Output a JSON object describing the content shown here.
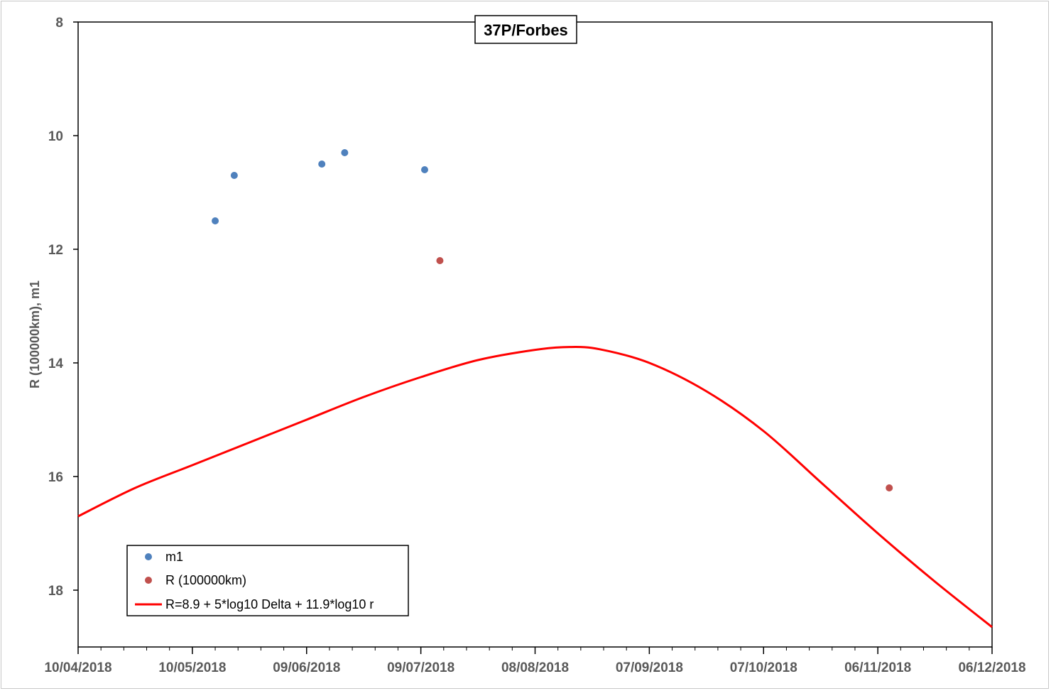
{
  "chart_data": {
    "type": "scatter",
    "title": "37P/Forbes",
    "xlabel": "",
    "ylabel": "R (100000km), m1",
    "x_type": "date",
    "xlim": [
      "2018-04-10",
      "2018-12-06"
    ],
    "ylim": [
      19,
      8
    ],
    "y_reversed": true,
    "x_ticks": [
      "2018-04-10",
      "2018-05-10",
      "2018-06-09",
      "2018-07-09",
      "2018-08-08",
      "2018-09-07",
      "2018-10-07",
      "2018-11-06",
      "2018-12-06"
    ],
    "x_tick_labels": [
      "10/04/2018",
      "10/05/2018",
      "09/06/2018",
      "09/07/2018",
      "08/08/2018",
      "07/09/2018",
      "07/10/2018",
      "06/11/2018",
      "06/12/2018"
    ],
    "y_ticks": [
      8,
      10,
      12,
      14,
      16,
      18
    ],
    "y_tick_labels": [
      "8",
      "10",
      "12",
      "14",
      "16",
      "18"
    ],
    "grid": false,
    "legend": "bottom-left",
    "series": [
      {
        "name": "m1",
        "kind": "scatter",
        "color": "#4f81bd",
        "points": [
          {
            "x": "2018-05-16",
            "y": 11.5
          },
          {
            "x": "2018-05-21",
            "y": 10.7
          },
          {
            "x": "2018-06-13",
            "y": 10.5
          },
          {
            "x": "2018-06-19",
            "y": 10.3
          },
          {
            "x": "2018-07-10",
            "y": 10.6
          }
        ]
      },
      {
        "name": "R (100000km)",
        "kind": "scatter",
        "color": "#c0504d",
        "points": [
          {
            "x": "2018-07-14",
            "y": 12.2
          },
          {
            "x": "2018-11-09",
            "y": 16.2
          }
        ]
      },
      {
        "name": "R=8.9 + 5*log10 Delta + 11.9*log10 r",
        "kind": "line",
        "color": "#ff0000",
        "points": [
          {
            "x": "2018-04-10",
            "y": 16.7
          },
          {
            "x": "2018-04-25",
            "y": 16.2
          },
          {
            "x": "2018-05-10",
            "y": 15.8
          },
          {
            "x": "2018-05-25",
            "y": 15.4
          },
          {
            "x": "2018-06-09",
            "y": 15.0
          },
          {
            "x": "2018-06-24",
            "y": 14.6
          },
          {
            "x": "2018-07-09",
            "y": 14.25
          },
          {
            "x": "2018-07-24",
            "y": 13.95
          },
          {
            "x": "2018-08-08",
            "y": 13.77
          },
          {
            "x": "2018-08-17",
            "y": 13.72
          },
          {
            "x": "2018-08-25",
            "y": 13.76
          },
          {
            "x": "2018-09-07",
            "y": 14.0
          },
          {
            "x": "2018-09-22",
            "y": 14.5
          },
          {
            "x": "2018-10-07",
            "y": 15.2
          },
          {
            "x": "2018-10-22",
            "y": 16.1
          },
          {
            "x": "2018-11-06",
            "y": 17.0
          },
          {
            "x": "2018-11-21",
            "y": 17.85
          },
          {
            "x": "2018-12-06",
            "y": 18.65
          }
        ]
      }
    ]
  }
}
